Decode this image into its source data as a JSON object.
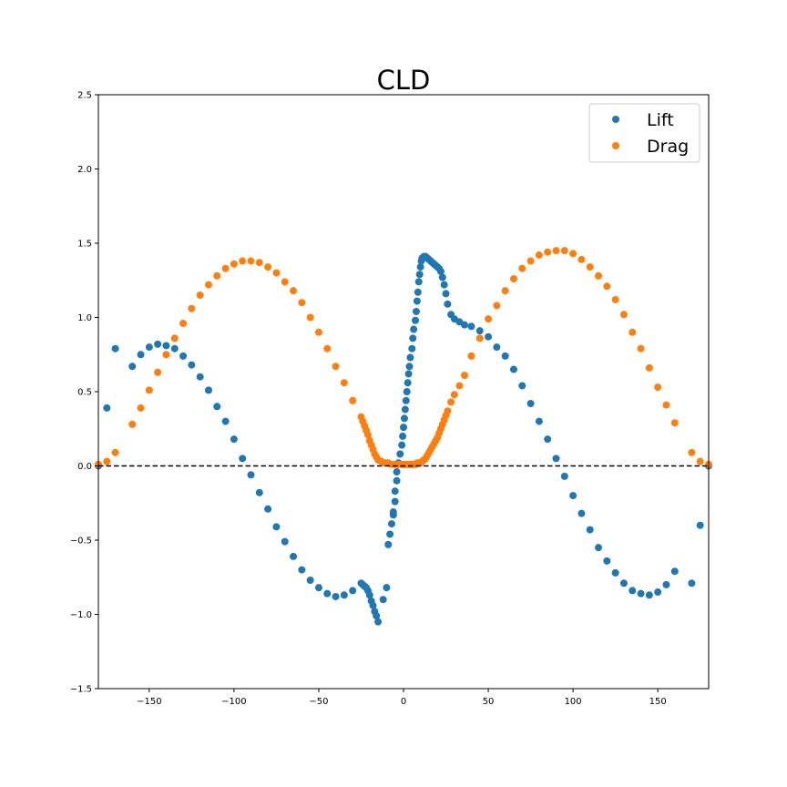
{
  "chart_data": {
    "type": "scatter",
    "title": "CLD",
    "xlabel": "",
    "ylabel": "",
    "xlim": [
      -180,
      180
    ],
    "ylim": [
      -1.5,
      2.5
    ],
    "x_ticks": [
      -150,
      -100,
      -50,
      0,
      50,
      100,
      150
    ],
    "x_tick_labels": [
      "−150",
      "−100",
      "−50",
      "0",
      "50",
      "100",
      "150"
    ],
    "y_ticks": [
      -1.5,
      -1.0,
      -0.5,
      0.0,
      0.5,
      1.0,
      1.5,
      2.0,
      2.5
    ],
    "y_tick_labels": [
      "−1.5",
      "−1.0",
      "−0.5",
      "0.0",
      "0.5",
      "1.0",
      "1.5",
      "2.0",
      "2.5"
    ],
    "grid": false,
    "legend_position": "top-right",
    "reference_line": {
      "y": 0,
      "style": "dashed",
      "color": "#000000"
    },
    "series": [
      {
        "name": "Lift",
        "color": "#1f77b4",
        "points": [
          [
            -180,
            0.0
          ],
          [
            -175,
            0.39
          ],
          [
            -170,
            0.79
          ],
          [
            -160,
            0.67
          ],
          [
            -155,
            0.75
          ],
          [
            -150,
            0.8
          ],
          [
            -145,
            0.82
          ],
          [
            -140,
            0.81
          ],
          [
            -135,
            0.79
          ],
          [
            -130,
            0.74
          ],
          [
            -125,
            0.68
          ],
          [
            -120,
            0.6
          ],
          [
            -115,
            0.51
          ],
          [
            -110,
            0.4
          ],
          [
            -105,
            0.3
          ],
          [
            -100,
            0.18
          ],
          [
            -95,
            0.05
          ],
          [
            -90,
            -0.06
          ],
          [
            -85,
            -0.18
          ],
          [
            -80,
            -0.29
          ],
          [
            -75,
            -0.41
          ],
          [
            -70,
            -0.51
          ],
          [
            -65,
            -0.61
          ],
          [
            -60,
            -0.7
          ],
          [
            -55,
            -0.77
          ],
          [
            -50,
            -0.82
          ],
          [
            -45,
            -0.86
          ],
          [
            -40,
            -0.88
          ],
          [
            -35,
            -0.87
          ],
          [
            -30,
            -0.84
          ],
          [
            -25,
            -0.79
          ],
          [
            -24,
            -0.8
          ],
          [
            -23,
            -0.81
          ],
          [
            -22,
            -0.82
          ],
          [
            -21,
            -0.84
          ],
          [
            -20,
            -0.87
          ],
          [
            -19,
            -0.91
          ],
          [
            -18,
            -0.94
          ],
          [
            -17,
            -0.98
          ],
          [
            -16,
            -1.01
          ],
          [
            -15,
            -1.05
          ],
          [
            -12,
            -0.9
          ],
          [
            -10,
            -0.82
          ],
          [
            -9,
            -0.53
          ],
          [
            -8,
            -0.46
          ],
          [
            -7,
            -0.39
          ],
          [
            -6,
            -0.33
          ],
          [
            -6,
            -0.31
          ],
          [
            -5,
            -0.24
          ],
          [
            -5,
            -0.17
          ],
          [
            -4,
            -0.1
          ],
          [
            -4,
            -0.04
          ],
          [
            -3,
            0.02
          ],
          [
            -2,
            0.08
          ],
          [
            -1,
            0.14
          ],
          [
            -0.5,
            0.2
          ],
          [
            0,
            0.26
          ],
          [
            0.5,
            0.32
          ],
          [
            1,
            0.38
          ],
          [
            1.5,
            0.44
          ],
          [
            2,
            0.5
          ],
          [
            2.5,
            0.56
          ],
          [
            3,
            0.62
          ],
          [
            3.5,
            0.67
          ],
          [
            4,
            0.73
          ],
          [
            5,
            0.79
          ],
          [
            5.5,
            0.86
          ],
          [
            6,
            0.92
          ],
          [
            7,
            0.98
          ],
          [
            7.5,
            1.04
          ],
          [
            8,
            1.11
          ],
          [
            8.5,
            1.17
          ],
          [
            9,
            1.24
          ],
          [
            9.5,
            1.29
          ],
          [
            10,
            1.34
          ],
          [
            10.5,
            1.38
          ],
          [
            11,
            1.4
          ],
          [
            12,
            1.41
          ],
          [
            13,
            1.41
          ],
          [
            14,
            1.4
          ],
          [
            15,
            1.39
          ],
          [
            16,
            1.38
          ],
          [
            17,
            1.37
          ],
          [
            18,
            1.36
          ],
          [
            19,
            1.35
          ],
          [
            20,
            1.34
          ],
          [
            21,
            1.33
          ],
          [
            22,
            1.31
          ],
          [
            23,
            1.27
          ],
          [
            24,
            1.22
          ],
          [
            25,
            1.16
          ],
          [
            26,
            1.09
          ],
          [
            28,
            1.02
          ],
          [
            30,
            0.99
          ],
          [
            33,
            0.97
          ],
          [
            36,
            0.95
          ],
          [
            40,
            0.94
          ],
          [
            45,
            0.91
          ],
          [
            50,
            0.87
          ],
          [
            55,
            0.8
          ],
          [
            60,
            0.74
          ],
          [
            65,
            0.65
          ],
          [
            70,
            0.54
          ],
          [
            75,
            0.42
          ],
          [
            80,
            0.3
          ],
          [
            85,
            0.18
          ],
          [
            90,
            0.05
          ],
          [
            95,
            -0.07
          ],
          [
            100,
            -0.2
          ],
          [
            105,
            -0.32
          ],
          [
            110,
            -0.43
          ],
          [
            115,
            -0.55
          ],
          [
            120,
            -0.64
          ],
          [
            125,
            -0.72
          ],
          [
            130,
            -0.79
          ],
          [
            135,
            -0.84
          ],
          [
            140,
            -0.86
          ],
          [
            145,
            -0.87
          ],
          [
            150,
            -0.85
          ],
          [
            155,
            -0.8
          ],
          [
            160,
            -0.71
          ],
          [
            170,
            -0.79
          ],
          [
            175,
            -0.4
          ],
          [
            180,
            0.0
          ]
        ]
      },
      {
        "name": "Drag",
        "color": "#ff7f0e",
        "points": [
          [
            -180,
            0.01
          ],
          [
            -175,
            0.03
          ],
          [
            -170,
            0.09
          ],
          [
            -160,
            0.28
          ],
          [
            -155,
            0.39
          ],
          [
            -150,
            0.51
          ],
          [
            -145,
            0.63
          ],
          [
            -140,
            0.75
          ],
          [
            -135,
            0.86
          ],
          [
            -130,
            0.96
          ],
          [
            -125,
            1.06
          ],
          [
            -120,
            1.15
          ],
          [
            -115,
            1.22
          ],
          [
            -110,
            1.28
          ],
          [
            -105,
            1.33
          ],
          [
            -100,
            1.36
          ],
          [
            -95,
            1.38
          ],
          [
            -90,
            1.38
          ],
          [
            -85,
            1.37
          ],
          [
            -80,
            1.34
          ],
          [
            -75,
            1.3
          ],
          [
            -70,
            1.24
          ],
          [
            -65,
            1.18
          ],
          [
            -60,
            1.1
          ],
          [
            -55,
            1.0
          ],
          [
            -50,
            0.9
          ],
          [
            -45,
            0.79
          ],
          [
            -40,
            0.67
          ],
          [
            -35,
            0.56
          ],
          [
            -30,
            0.44
          ],
          [
            -25,
            0.33
          ],
          [
            -24,
            0.3
          ],
          [
            -23,
            0.27
          ],
          [
            -22,
            0.24
          ],
          [
            -21,
            0.21
          ],
          [
            -20,
            0.17
          ],
          [
            -19,
            0.14
          ],
          [
            -18,
            0.11
          ],
          [
            -17,
            0.08
          ],
          [
            -16,
            0.06
          ],
          [
            -15,
            0.04
          ],
          [
            -13,
            0.03
          ],
          [
            -11,
            0.02
          ],
          [
            -9,
            0.02
          ],
          [
            -7,
            0.01
          ],
          [
            -5,
            0.01
          ],
          [
            -3,
            0.01
          ],
          [
            -1,
            0.01
          ],
          [
            0,
            0.01
          ],
          [
            1,
            0.01
          ],
          [
            2,
            0.01
          ],
          [
            3,
            0.01
          ],
          [
            4,
            0.01
          ],
          [
            5,
            0.01
          ],
          [
            6,
            0.01
          ],
          [
            7,
            0.01
          ],
          [
            8,
            0.02
          ],
          [
            9,
            0.02
          ],
          [
            10,
            0.02
          ],
          [
            11,
            0.03
          ],
          [
            12,
            0.04
          ],
          [
            13,
            0.05
          ],
          [
            14,
            0.07
          ],
          [
            15,
            0.09
          ],
          [
            16,
            0.11
          ],
          [
            17,
            0.13
          ],
          [
            18,
            0.15
          ],
          [
            19,
            0.17
          ],
          [
            20,
            0.19
          ],
          [
            21,
            0.22
          ],
          [
            22,
            0.25
          ],
          [
            23,
            0.28
          ],
          [
            24,
            0.31
          ],
          [
            25,
            0.34
          ],
          [
            26,
            0.37
          ],
          [
            28,
            0.43
          ],
          [
            30,
            0.48
          ],
          [
            33,
            0.54
          ],
          [
            36,
            0.61
          ],
          [
            40,
            0.74
          ],
          [
            45,
            0.86
          ],
          [
            50,
            0.99
          ],
          [
            55,
            1.08
          ],
          [
            60,
            1.18
          ],
          [
            65,
            1.26
          ],
          [
            70,
            1.33
          ],
          [
            75,
            1.38
          ],
          [
            80,
            1.42
          ],
          [
            85,
            1.44
          ],
          [
            90,
            1.45
          ],
          [
            95,
            1.45
          ],
          [
            100,
            1.43
          ],
          [
            105,
            1.39
          ],
          [
            110,
            1.34
          ],
          [
            115,
            1.28
          ],
          [
            120,
            1.21
          ],
          [
            125,
            1.12
          ],
          [
            130,
            1.02
          ],
          [
            135,
            0.9
          ],
          [
            140,
            0.79
          ],
          [
            145,
            0.66
          ],
          [
            150,
            0.53
          ],
          [
            155,
            0.41
          ],
          [
            160,
            0.29
          ],
          [
            170,
            0.09
          ],
          [
            175,
            0.03
          ],
          [
            180,
            0.01
          ]
        ]
      }
    ]
  }
}
